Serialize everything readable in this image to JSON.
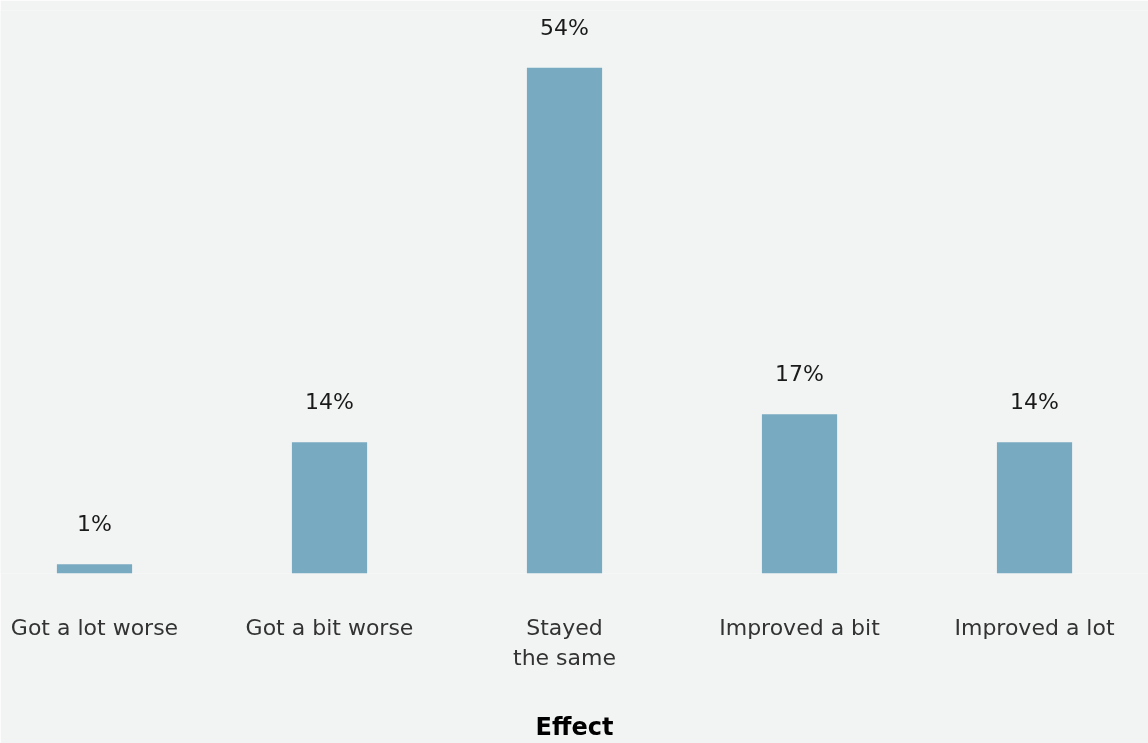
{
  "chart_data": {
    "type": "bar",
    "xlabel": "Effect",
    "categories": [
      "Got a lot worse",
      "Got a bit worse",
      "Stayed\nthe same",
      "Improved a bit",
      "Improved a lot"
    ],
    "values": [
      1,
      14,
      54,
      17,
      14
    ],
    "value_labels": [
      "1%",
      "14%",
      "54%",
      "17%",
      "14%"
    ],
    "color": "#78aac2"
  }
}
